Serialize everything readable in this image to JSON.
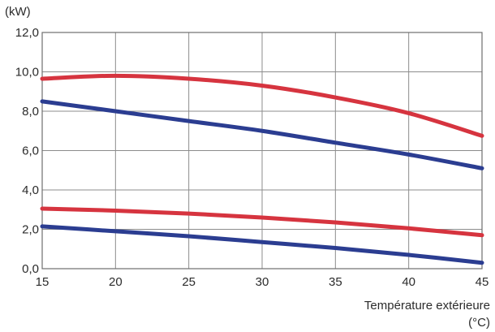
{
  "chart_data": {
    "type": "line",
    "xlabel": "Température extérieure",
    "xunit": "(°C)",
    "ylabel": "(kW)",
    "xlim": [
      15,
      45
    ],
    "ylim": [
      0,
      12
    ],
    "x_ticks": [
      15,
      20,
      25,
      30,
      35,
      40,
      45
    ],
    "y_ticks": [
      "0,0",
      "2,0",
      "4,0",
      "6,0",
      "8,0",
      "10,0",
      "12,0"
    ],
    "grid": true,
    "series": [
      {
        "color": "#d6343f",
        "x": [
          15,
          20,
          25,
          30,
          35,
          40,
          45
        ],
        "values": [
          9.65,
          9.8,
          9.65,
          9.3,
          8.7,
          7.9,
          6.75
        ]
      },
      {
        "color": "#2b3d91",
        "x": [
          15,
          20,
          25,
          30,
          35,
          40,
          45
        ],
        "values": [
          8.5,
          8.0,
          7.5,
          7.0,
          6.4,
          5.8,
          5.1
        ]
      },
      {
        "color": "#d6343f",
        "x": [
          15,
          20,
          25,
          30,
          35,
          40,
          45
        ],
        "values": [
          3.05,
          2.95,
          2.8,
          2.6,
          2.35,
          2.05,
          1.7
        ]
      },
      {
        "color": "#2b3d91",
        "x": [
          15,
          20,
          25,
          30,
          35,
          40,
          45
        ],
        "values": [
          2.15,
          1.9,
          1.65,
          1.35,
          1.05,
          0.7,
          0.3
        ]
      }
    ]
  }
}
